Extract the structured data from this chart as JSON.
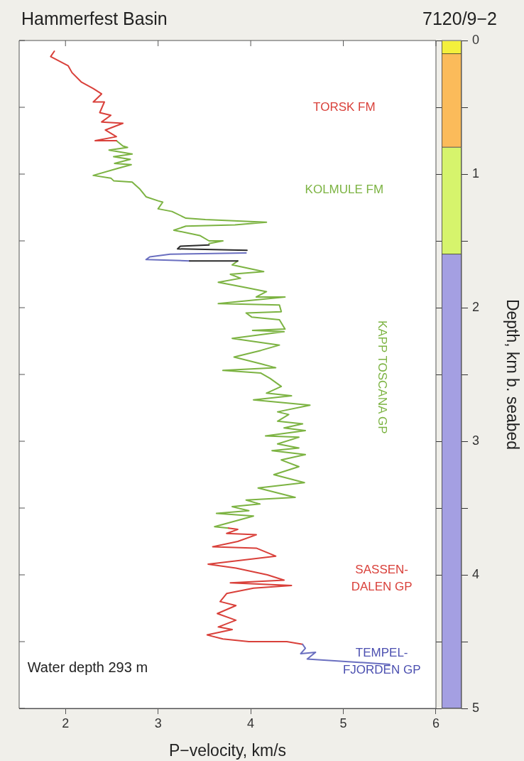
{
  "chart_data": [
    {
      "type": "line",
      "title": "Hammerfest Basin",
      "xlabel": "P−velocity, km/s",
      "xlim": [
        1.5,
        6
      ],
      "xticks": [
        2,
        3,
        4,
        5,
        6
      ],
      "ylim": [
        5,
        0
      ],
      "yticks": [
        0,
        0.5,
        1,
        1.5,
        2,
        2.5,
        3,
        3.5,
        4,
        4.5,
        5
      ],
      "tick_labels": "x",
      "grid": false,
      "legend": false,
      "marker": "none",
      "line_style": "solid",
      "series": [
        {
          "color": "#d9403a",
          "x": [
            1.88,
            1.84,
            2.03,
            2.07,
            2.17,
            2.3,
            2.39,
            2.3,
            2.42,
            2.37,
            2.49,
            2.39,
            2.62,
            2.43,
            2.55,
            2.32,
            2.55
          ],
          "values": [
            0.08,
            0.12,
            0.19,
            0.24,
            0.31,
            0.36,
            0.4,
            0.46,
            0.46,
            0.54,
            0.56,
            0.61,
            0.62,
            0.67,
            0.72,
            0.75,
            0.75
          ]
        },
        {
          "color": "#7cb342",
          "x": [
            2.55,
            2.62,
            2.67,
            2.47,
            2.72,
            2.52,
            2.7,
            2.53,
            2.71,
            2.55,
            2.3,
            2.49,
            2.52,
            2.72,
            2.8,
            2.87,
            3.0,
            3.05,
            3.0,
            3.15,
            3.3,
            3.51,
            4.17,
            3.83,
            3.3,
            3.17,
            3.45,
            3.55,
            3.7,
            3.55
          ],
          "values": [
            0.75,
            0.79,
            0.8,
            0.82,
            0.85,
            0.87,
            0.89,
            0.92,
            0.93,
            0.96,
            1.01,
            1.03,
            1.05,
            1.06,
            1.11,
            1.17,
            1.2,
            1.21,
            1.26,
            1.28,
            1.33,
            1.34,
            1.36,
            1.38,
            1.39,
            1.42,
            1.46,
            1.5,
            1.5,
            1.52
          ]
        },
        {
          "color": "#2b2b2b",
          "x": [
            3.55,
            3.24,
            3.21,
            3.96
          ],
          "values": [
            1.53,
            1.54,
            1.56,
            1.57
          ]
        },
        {
          "color": "#6a6fc0",
          "x": [
            3.95,
            3.13,
            2.91,
            2.87,
            3.34
          ],
          "values": [
            1.59,
            1.6,
            1.62,
            1.64,
            1.65
          ]
        },
        {
          "color": "#2b2b2b",
          "x": [
            3.34,
            3.86
          ],
          "values": [
            1.65,
            1.65
          ]
        },
        {
          "color": "#7cb342",
          "x": [
            3.86,
            3.8,
            4.14,
            3.78,
            3.89,
            3.65,
            3.95,
            4.17,
            4.06,
            4.37,
            3.65,
            4.31,
            4.33,
            3.95,
            4.01,
            4.31,
            4.37,
            4.02,
            4.36,
            3.8,
            4.31,
            4.11,
            3.82,
            4.11,
            4.27,
            3.7,
            4.11,
            4.21,
            4.33,
            4.17,
            4.44,
            4.03,
            4.64,
            4.29,
            4.41,
            4.29,
            4.56,
            4.36,
            4.59,
            4.16,
            4.52,
            4.29,
            4.52,
            4.23,
            4.59,
            4.33,
            4.52,
            4.25,
            4.58,
            4.08,
            4.48,
            3.95,
            4.1,
            3.8,
            3.98,
            3.63,
            4.03,
            3.61,
            3.76
          ],
          "values": [
            1.65,
            1.68,
            1.73,
            1.75,
            1.78,
            1.81,
            1.85,
            1.88,
            1.92,
            1.92,
            1.97,
            1.98,
            2.03,
            2.04,
            2.07,
            2.09,
            2.16,
            2.17,
            2.18,
            2.23,
            2.28,
            2.32,
            2.37,
            2.42,
            2.45,
            2.47,
            2.49,
            2.53,
            2.59,
            2.64,
            2.66,
            2.69,
            2.73,
            2.78,
            2.8,
            2.85,
            2.87,
            2.9,
            2.92,
            2.96,
            2.97,
            3.02,
            3.05,
            3.07,
            3.1,
            3.14,
            3.19,
            3.25,
            3.31,
            3.35,
            3.42,
            3.44,
            3.47,
            3.49,
            3.52,
            3.54,
            3.56,
            3.64,
            3.65
          ]
        },
        {
          "color": "#d9403a",
          "x": [
            3.76,
            3.86,
            3.74,
            4.06,
            3.86,
            3.59,
            4.06,
            4.27,
            3.54,
            3.84,
            4.18,
            4.36,
            3.78,
            4.44,
            4.03,
            3.74,
            3.67,
            3.84,
            3.64,
            3.84,
            3.65,
            3.8,
            3.53,
            3.7,
            3.98,
            4.39,
            4.56
          ],
          "values": [
            3.65,
            3.66,
            3.69,
            3.7,
            3.75,
            3.79,
            3.8,
            3.86,
            3.92,
            3.95,
            4.0,
            4.04,
            4.06,
            4.08,
            4.1,
            4.14,
            4.2,
            4.23,
            4.29,
            4.34,
            4.39,
            4.41,
            4.45,
            4.48,
            4.5,
            4.5,
            4.52
          ]
        },
        {
          "color": "#6a6fc0",
          "x": [
            4.56,
            4.59,
            4.54,
            4.7,
            4.61,
            5.5
          ],
          "values": [
            4.52,
            4.55,
            4.59,
            4.58,
            4.63,
            4.67
          ]
        }
      ],
      "annotations": [
        "TORSK FM",
        "KOLMULE FM",
        "KAPP TOSCANA GP",
        "SASSEN-\nDALEN GP",
        "TEMPEL-\nFJORDEN GP",
        "Water depth 293 m"
      ]
    },
    {
      "type": "bar",
      "subtitle": "7120/9−2",
      "ylabel": "Depth, km b. seabed",
      "stacked": true,
      "categories": [
        null
      ],
      "ylim": [
        5,
        0
      ],
      "yticks": [
        0,
        {
          "value": 0.5,
          "label": null
        },
        1,
        {
          "value": 1.5,
          "label": null
        },
        2,
        {
          "value": 2.5,
          "label": null
        },
        3,
        {
          "value": 3.5,
          "label": null
        },
        4,
        {
          "value": 4.5,
          "label": null
        },
        5
      ],
      "tick_labels": "y",
      "legend": false,
      "series": [
        {
          "color": "#f4f03c",
          "values": [
            0.1
          ]
        },
        {
          "color": "#fbbb5a",
          "values": [
            0.7
          ]
        },
        {
          "color": "#d6f46c",
          "values": [
            0.8
          ]
        },
        {
          "color": "#a49fe2",
          "values": [
            3.4
          ]
        }
      ]
    }
  ]
}
